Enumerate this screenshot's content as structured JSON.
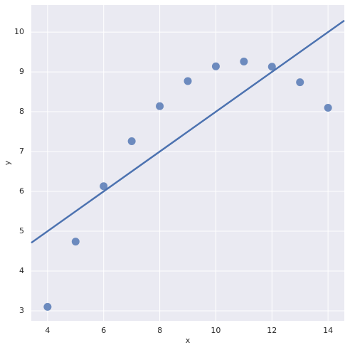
{
  "chart_data": {
    "type": "scatter",
    "x_label": "x",
    "y_label": "y",
    "x": [
      4,
      5,
      6,
      7,
      8,
      9,
      10,
      11,
      12,
      13,
      14
    ],
    "values": [
      3.1,
      4.74,
      6.13,
      7.26,
      8.14,
      8.77,
      9.14,
      9.26,
      9.13,
      8.74,
      8.1
    ],
    "color": "#4c72b0",
    "regression": {
      "x": [
        3.42,
        14.58
      ],
      "values": [
        4.71,
        10.29
      ],
      "color": "#4c72b0"
    },
    "xlim": [
      3.42,
      14.58
    ],
    "xticks": [
      4,
      6,
      8,
      10,
      12,
      14
    ],
    "ylim": [
      2.75,
      10.68
    ],
    "yticks": [
      3,
      4,
      5,
      6,
      7,
      8,
      9,
      10
    ],
    "grid": true,
    "background": "#eaeaf2"
  }
}
